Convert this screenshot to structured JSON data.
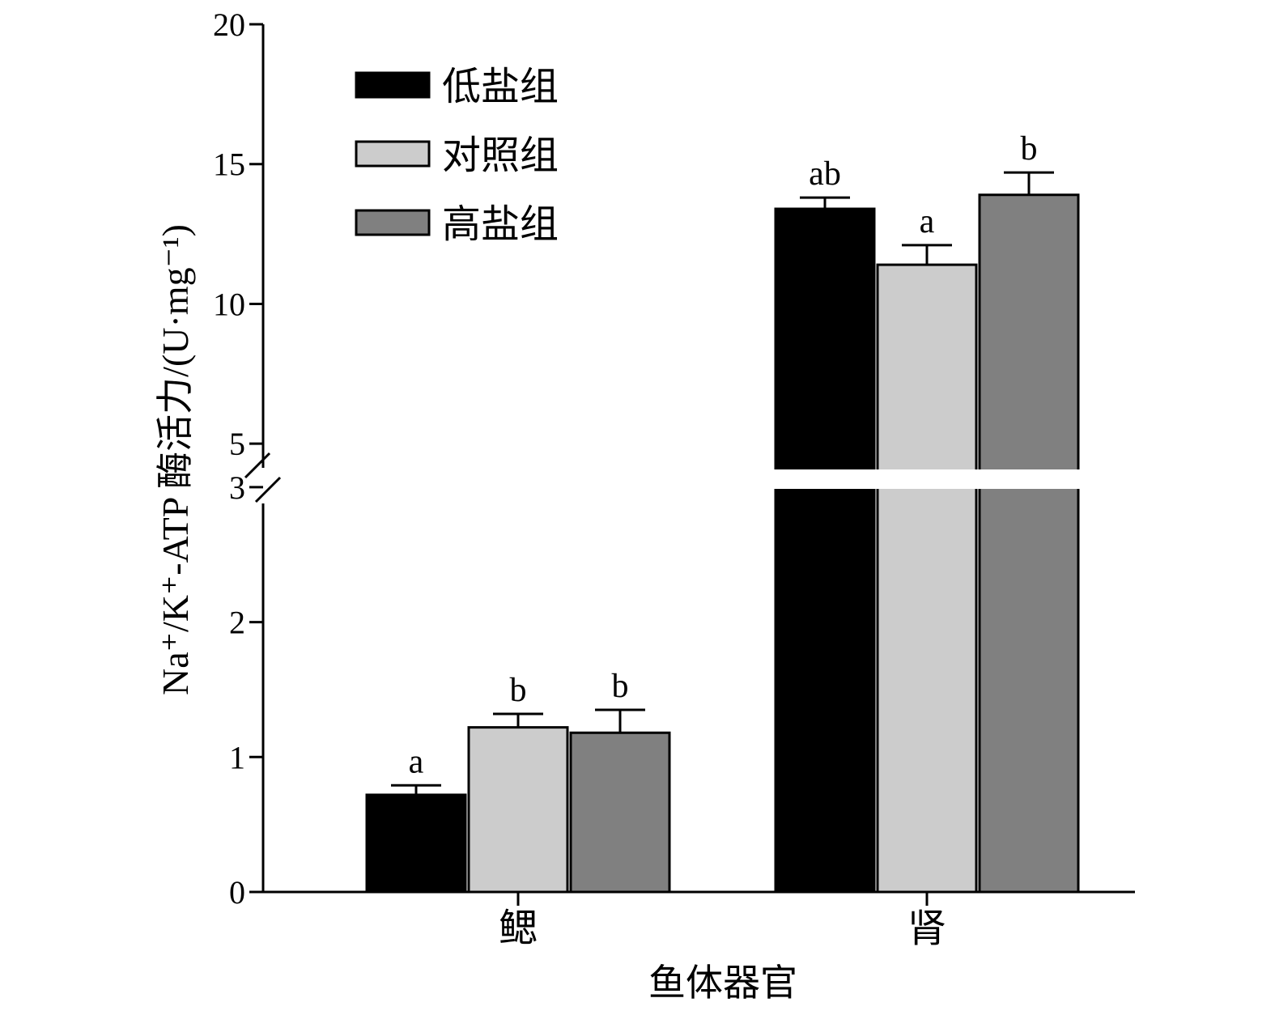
{
  "chart_data": {
    "type": "bar",
    "xlabel": "鱼体器官",
    "ylabel": "Na⁺/K⁺-ATP 酶活力/(U·mg⁻¹)",
    "categories": [
      "鳃",
      "肾"
    ],
    "series": [
      {
        "name": "低盐组",
        "color": "#000000",
        "values": [
          0.72,
          13.4
        ],
        "errors": [
          0.07,
          0.4
        ],
        "letters": [
          "a",
          "ab"
        ]
      },
      {
        "name": "对照组",
        "color": "#cccccc",
        "values": [
          1.22,
          11.4
        ],
        "errors": [
          0.1,
          0.7
        ],
        "letters": [
          "b",
          "a"
        ]
      },
      {
        "name": "高盐组",
        "color": "#808080",
        "values": [
          1.18,
          13.9
        ],
        "errors": [
          0.17,
          0.8
        ],
        "letters": [
          "b",
          "b"
        ]
      }
    ],
    "y_ticks_lower": [
      "0",
      "1",
      "2",
      "3"
    ],
    "y_ticks_upper": [
      "5",
      "10",
      "15",
      "20"
    ],
    "ylim": [
      0,
      20
    ],
    "axis_break": [
      3,
      3.5
    ],
    "legend_position": "top-left",
    "grid": false
  }
}
